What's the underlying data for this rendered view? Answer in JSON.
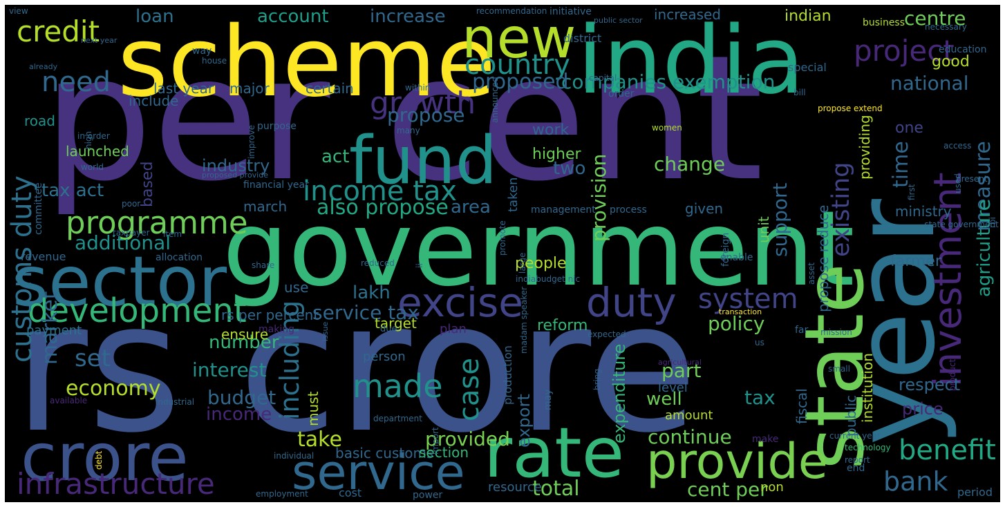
{
  "words": [
    {
      "text": "per cent",
      "color": "#46327e"
    },
    {
      "text": "rs crore",
      "color": "#3b528b"
    },
    {
      "text": "government",
      "color": "#35b779"
    },
    {
      "text": "scheme",
      "color": "#fde725"
    },
    {
      "text": "india",
      "color": "#22a884"
    },
    {
      "text": "year",
      "color": "#2c728e"
    },
    {
      "text": "state",
      "color": "#6ece58"
    },
    {
      "text": "sector",
      "color": "#2c728e"
    },
    {
      "text": "fund",
      "color": "#21918c"
    },
    {
      "text": "crore",
      "color": "#3b528b"
    },
    {
      "text": "rate",
      "color": "#35b779"
    },
    {
      "text": "new",
      "color": "#b5de2b"
    },
    {
      "text": "provide",
      "color": "#7ad151"
    },
    {
      "text": "excise",
      "color": "#414487"
    },
    {
      "text": "duty",
      "color": "#414487"
    },
    {
      "text": "service",
      "color": "#31688e"
    },
    {
      "text": "investment",
      "color": "#482878"
    },
    {
      "text": "income tax",
      "color": "#21918c"
    },
    {
      "text": "development",
      "color": "#35b779"
    },
    {
      "text": "programme",
      "color": "#6ece58"
    },
    {
      "text": "infrastructure",
      "color": "#482878"
    },
    {
      "text": "customs duty",
      "color": "#2c728e"
    },
    {
      "text": "project",
      "color": "#482878"
    },
    {
      "text": "country",
      "color": "#21918c"
    },
    {
      "text": "growth",
      "color": "#46327e"
    },
    {
      "text": "credit",
      "color": "#b5de2b"
    },
    {
      "text": "system",
      "color": "#414487"
    },
    {
      "text": "need",
      "color": "#31688e"
    },
    {
      "text": "made",
      "color": "#21918c"
    },
    {
      "text": "benefit",
      "color": "#22a884"
    },
    {
      "text": "bank",
      "color": "#31688e"
    },
    {
      "text": "case",
      "color": "#21918c"
    },
    {
      "text": "including",
      "color": "#2c728e"
    },
    {
      "text": "existing",
      "color": "#414487"
    },
    {
      "text": "measure",
      "color": "#31688e"
    },
    {
      "text": "agriculture",
      "color": "#1f9e89"
    },
    {
      "text": "companies exemption",
      "color": "#21918c"
    },
    {
      "text": "national",
      "color": "#31688e"
    },
    {
      "text": "proposed",
      "color": "#31688e"
    },
    {
      "text": "propose",
      "color": "#31688e"
    },
    {
      "text": "provision",
      "color": "#6ece58"
    },
    {
      "text": "support",
      "color": "#31688e"
    },
    {
      "text": "change",
      "color": "#6ece58"
    },
    {
      "text": "set",
      "color": "#31688e"
    },
    {
      "text": "economy",
      "color": "#b5de2b"
    },
    {
      "text": "market",
      "color": "#31688e"
    },
    {
      "text": "also propose",
      "color": "#22a884"
    },
    {
      "text": "additional",
      "color": "#21918c"
    },
    {
      "text": "service tax",
      "color": "#31688e"
    },
    {
      "text": "policy",
      "color": "#6ece58"
    },
    {
      "text": "interest",
      "color": "#21918c"
    },
    {
      "text": "budget",
      "color": "#31688e"
    },
    {
      "text": "part",
      "color": "#6ece58"
    },
    {
      "text": "well",
      "color": "#6ece58"
    },
    {
      "text": "tax",
      "color": "#21918c"
    },
    {
      "text": "take",
      "color": "#b5de2b"
    },
    {
      "text": "provided",
      "color": "#7ad151"
    },
    {
      "text": "total",
      "color": "#6ece58"
    },
    {
      "text": "continue",
      "color": "#6ece58"
    },
    {
      "text": "cent per",
      "color": "#6ece58"
    },
    {
      "text": "income",
      "color": "#482878"
    },
    {
      "text": "price",
      "color": "#482878"
    },
    {
      "text": "lakh",
      "color": "#2c728e"
    },
    {
      "text": "two",
      "color": "#31688e"
    },
    {
      "text": "act",
      "color": "#35b779"
    },
    {
      "text": "area",
      "color": "#31688e"
    },
    {
      "text": "centre",
      "color": "#6ece58"
    },
    {
      "text": "tax act",
      "color": "#2c728e"
    },
    {
      "text": "loan",
      "color": "#2c728e"
    },
    {
      "text": "account",
      "color": "#1f9e89"
    },
    {
      "text": "increase",
      "color": "#31688e"
    },
    {
      "text": "indian",
      "color": "#b5de2b"
    },
    {
      "text": "increased",
      "color": "#31688e"
    },
    {
      "text": "industry",
      "color": "#31688e"
    },
    {
      "text": "number",
      "color": "#35b779"
    },
    {
      "text": "good",
      "color": "#b5de2b"
    },
    {
      "text": "respect",
      "color": "#31688e"
    },
    {
      "text": "time",
      "color": "#31688e"
    },
    {
      "text": "one",
      "color": "#414487"
    },
    {
      "text": "work",
      "color": "#31688e"
    },
    {
      "text": "higher",
      "color": "#6ece58"
    },
    {
      "text": "reform",
      "color": "#35b779"
    },
    {
      "text": "expenditure",
      "color": "#35b779"
    },
    {
      "text": "farmer",
      "color": "#31688e"
    },
    {
      "text": "people",
      "color": "#b5de2b"
    },
    {
      "text": "major",
      "color": "#31688e"
    },
    {
      "text": "last year",
      "color": "#31688e"
    },
    {
      "text": "certain",
      "color": "#31688e"
    },
    {
      "text": "based",
      "color": "#414487"
    },
    {
      "text": "launched",
      "color": "#6ece58"
    },
    {
      "text": "march",
      "color": "#31688e"
    },
    {
      "text": "include",
      "color": "#31688e"
    },
    {
      "text": "road",
      "color": "#21918c"
    },
    {
      "text": "unit",
      "color": "#6ece58"
    },
    {
      "text": "providing",
      "color": "#b5de2b"
    },
    {
      "text": "ministry",
      "color": "#31688e"
    },
    {
      "text": "given",
      "color": "#31688e"
    },
    {
      "text": "fiscal",
      "color": "#31688e"
    },
    {
      "text": "institution",
      "color": "#b5de2b"
    },
    {
      "text": "propose reduce",
      "color": "#31688e"
    },
    {
      "text": "export",
      "color": "#31688e"
    },
    {
      "text": "rs per percent",
      "color": "#31688e"
    },
    {
      "text": "ensure",
      "color": "#b5de2b"
    },
    {
      "text": "target",
      "color": "#b5de2b"
    },
    {
      "text": "use",
      "color": "#31688e"
    },
    {
      "text": "payment",
      "color": "#2c728e"
    },
    {
      "text": "basic customs",
      "color": "#31688e"
    },
    {
      "text": "section",
      "color": "#35b779"
    },
    {
      "text": "cost",
      "color": "#31688e"
    },
    {
      "text": "resource",
      "color": "#31688e"
    },
    {
      "text": "non",
      "color": "#b5de2b"
    },
    {
      "text": "period",
      "color": "#31688e"
    },
    {
      "text": "amount",
      "color": "#b5de2b"
    },
    {
      "text": "level",
      "color": "#31688e"
    },
    {
      "text": "must",
      "color": "#b5de2b"
    },
    {
      "text": "production",
      "color": "#31688e"
    },
    {
      "text": "person",
      "color": "#31688e"
    },
    {
      "text": "plan",
      "color": "#482878"
    },
    {
      "text": "taken",
      "color": "#31688e"
    },
    {
      "text": "public",
      "color": "#31688e"
    },
    {
      "text": "make",
      "color": "#482878"
    },
    {
      "text": "enable",
      "color": "#31688e"
    },
    {
      "text": "process",
      "color": "#31688e"
    },
    {
      "text": "management",
      "color": "#31688e"
    },
    {
      "text": "revenue",
      "color": "#31688e"
    },
    {
      "text": "allocation",
      "color": "#31688e"
    },
    {
      "text": "committee",
      "color": "#31688e"
    },
    {
      "text": "initiative",
      "color": "#31688e"
    },
    {
      "text": "district",
      "color": "#31688e"
    },
    {
      "text": "special",
      "color": "#31688e"
    },
    {
      "text": "business",
      "color": "#b5de2b"
    },
    {
      "text": "necessary",
      "color": "#31688e"
    },
    {
      "text": "education",
      "color": "#31688e"
    },
    {
      "text": "way",
      "color": "#31688e"
    },
    {
      "text": "house",
      "color": "#31688e"
    },
    {
      "text": "within",
      "color": "#31688e"
    },
    {
      "text": "order",
      "color": "#31688e"
    },
    {
      "text": "capital",
      "color": "#31688e"
    },
    {
      "text": "bill",
      "color": "#31688e"
    },
    {
      "text": "propose extend",
      "color": "#fde725"
    },
    {
      "text": "women",
      "color": "#b5de2b"
    },
    {
      "text": "access",
      "color": "#31688e"
    },
    {
      "text": "first",
      "color": "#31688e"
    },
    {
      "text": "used",
      "color": "#31688e"
    },
    {
      "text": "present",
      "color": "#31688e"
    },
    {
      "text": "rbi",
      "color": "#31688e"
    },
    {
      "text": "state government",
      "color": "#31688e"
    },
    {
      "text": "asset",
      "color": "#31688e"
    },
    {
      "text": "foreign",
      "color": "#31688e"
    },
    {
      "text": "announced",
      "color": "#31688e"
    },
    {
      "text": "view",
      "color": "#31688e"
    },
    {
      "text": "next year",
      "color": "#31688e"
    },
    {
      "text": "already",
      "color": "#31688e"
    },
    {
      "text": "recommendation",
      "color": "#31688e"
    },
    {
      "text": "public sector",
      "color": "#31688e"
    },
    {
      "text": "in order",
      "color": "#31688e"
    },
    {
      "text": "world",
      "color": "#31688e"
    },
    {
      "text": "high",
      "color": "#31688e"
    },
    {
      "text": "improve",
      "color": "#31688e"
    },
    {
      "text": "purpose",
      "color": "#31688e"
    },
    {
      "text": "many",
      "color": "#31688e"
    },
    {
      "text": "proposed provide",
      "color": "#31688e"
    },
    {
      "text": "financial year",
      "color": "#31688e"
    },
    {
      "text": "poor",
      "color": "#31688e"
    },
    {
      "text": "taxpayer",
      "color": "#31688e"
    },
    {
      "text": "item",
      "color": "#31688e"
    },
    {
      "text": "share",
      "color": "#31688e"
    },
    {
      "text": "reduced",
      "color": "#31688e"
    },
    {
      "text": "ii",
      "color": "#31688e"
    },
    {
      "text": "promote",
      "color": "#31688e"
    },
    {
      "text": "large",
      "color": "#31688e"
    },
    {
      "text": "indiabudget nic",
      "color": "#31688e"
    },
    {
      "text": "making",
      "color": "#482878"
    },
    {
      "text": "issue",
      "color": "#31688e"
    },
    {
      "text": "due",
      "color": "#31688e"
    },
    {
      "text": "expected",
      "color": "#31688e"
    },
    {
      "text": "transaction",
      "color": "#fde725"
    },
    {
      "text": "us",
      "color": "#31688e"
    },
    {
      "text": "far",
      "color": "#31688e"
    },
    {
      "text": "mission",
      "color": "#31688e"
    },
    {
      "text": "madam speaker",
      "color": "#31688e"
    },
    {
      "text": "bring",
      "color": "#31688e"
    },
    {
      "text": "agricultural",
      "color": "#482878"
    },
    {
      "text": "small",
      "color": "#31688e"
    },
    {
      "text": "product",
      "color": "#482878"
    },
    {
      "text": "current year",
      "color": "#31688e"
    },
    {
      "text": "technology",
      "color": "#35b779"
    },
    {
      "text": "report",
      "color": "#31688e"
    },
    {
      "text": "end",
      "color": "#31688e"
    },
    {
      "text": "may",
      "color": "#31688e"
    },
    {
      "text": "import",
      "color": "#31688e"
    },
    {
      "text": "department",
      "color": "#31688e"
    },
    {
      "text": "power",
      "color": "#31688e"
    },
    {
      "text": "available",
      "color": "#482878"
    },
    {
      "text": "industrial",
      "color": "#31688e"
    },
    {
      "text": "debt",
      "color": "#fde725"
    },
    {
      "text": "individual",
      "color": "#31688e"
    },
    {
      "text": "employment",
      "color": "#31688e"
    },
    {
      "text": "propose increase",
      "color": "#482878"
    }
  ]
}
